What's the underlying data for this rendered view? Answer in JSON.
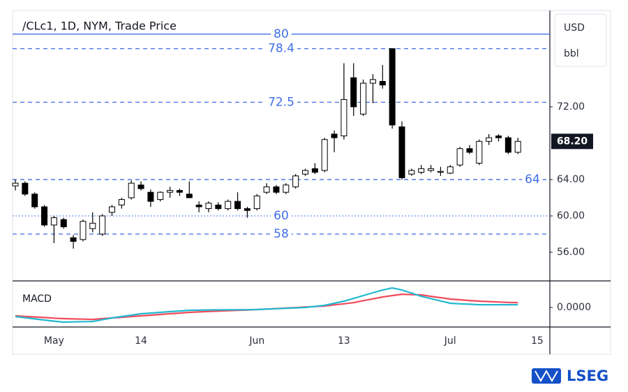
{
  "chart_data": [
    {
      "type": "candlestick",
      "title": "/CLc1, 1D, NYM, Trade Price",
      "currency": "USD",
      "unit": "bbl",
      "categories": [
        null,
        null,
        null,
        null,
        "May",
        null,
        null,
        null,
        null,
        null,
        null,
        null,
        null,
        "14",
        null,
        null,
        null,
        null,
        null,
        null,
        null,
        null,
        null,
        null,
        null,
        "Jun",
        null,
        null,
        null,
        null,
        null,
        null,
        null,
        null,
        "13",
        null,
        null,
        null,
        null,
        null,
        null,
        null,
        null,
        null,
        null,
        "Jul",
        null,
        null,
        null,
        null,
        null,
        null,
        null,
        null,
        "15"
      ],
      "open": [
        63.3,
        63.6,
        62.4,
        61.0,
        59.0,
        59.6,
        57.6,
        57.4,
        58.6,
        58.0,
        60.4,
        61.2,
        62.0,
        63.4,
        62.6,
        61.8,
        62.6,
        62.8,
        62.4,
        61.2,
        60.8,
        61.2,
        60.8,
        61.6,
        60.8,
        60.8,
        62.6,
        63.2,
        62.6,
        63.2,
        64.6,
        65.2,
        65.0,
        69.0,
        68.8,
        75.2,
        71.2,
        74.6,
        74.8,
        78.4,
        69.8,
        64.6,
        64.8,
        65.0,
        64.8,
        64.7,
        65.6,
        67.4,
        65.8,
        68.2,
        68.8,
        68.6,
        67.0,
        null,
        null
      ],
      "high": [
        64.0,
        63.8,
        62.6,
        61.2,
        60.0,
        59.8,
        57.9,
        59.6,
        60.4,
        60.2,
        61.2,
        62.0,
        63.9,
        63.8,
        62.9,
        62.7,
        63.2,
        63.0,
        63.8,
        61.6,
        61.6,
        61.5,
        61.8,
        62.6,
        61.0,
        62.4,
        63.6,
        63.4,
        63.6,
        64.6,
        65.2,
        65.8,
        68.6,
        69.4,
        76.8,
        76.8,
        75.0,
        75.6,
        76.6,
        78.4,
        70.4,
        65.2,
        65.6,
        65.6,
        65.4,
        65.6,
        67.6,
        67.8,
        68.4,
        69.0,
        69.0,
        68.8,
        68.6,
        null,
        null
      ],
      "low": [
        62.8,
        62.2,
        60.8,
        58.8,
        57.0,
        58.6,
        56.4,
        57.2,
        58.2,
        57.8,
        60.0,
        60.8,
        61.8,
        62.8,
        61.0,
        61.6,
        62.0,
        62.2,
        62.0,
        60.4,
        60.4,
        60.6,
        60.6,
        60.6,
        59.8,
        60.6,
        62.4,
        62.4,
        62.4,
        63.0,
        64.4,
        64.6,
        64.8,
        67.0,
        68.4,
        71.0,
        71.0,
        72.4,
        74.0,
        69.6,
        64.0,
        64.4,
        64.6,
        64.8,
        64.4,
        64.6,
        65.4,
        66.8,
        65.6,
        67.8,
        68.2,
        66.8,
        66.8,
        null,
        null
      ],
      "close": [
        63.6,
        62.4,
        61.0,
        59.0,
        59.8,
        58.8,
        57.2,
        59.4,
        59.2,
        60.0,
        61.0,
        61.8,
        63.6,
        63.0,
        61.6,
        62.6,
        62.8,
        62.6,
        62.0,
        61.0,
        61.4,
        60.8,
        61.6,
        60.8,
        60.6,
        62.2,
        63.2,
        62.6,
        63.4,
        64.4,
        65.0,
        64.8,
        68.4,
        68.6,
        72.8,
        72.0,
        74.6,
        75.0,
        74.4,
        70.0,
        64.2,
        65.0,
        65.2,
        65.2,
        64.9,
        65.4,
        67.4,
        67.0,
        68.2,
        68.6,
        68.6,
        67.0,
        68.2,
        null,
        null
      ],
      "up_color": "#ffffff",
      "down_color": "#000000",
      "edge_color": "#000000",
      "ylim": [
        52.85,
        82.6
      ],
      "yticks": [
        {
          "value": 56,
          "label": "56.00"
        },
        {
          "value": 60,
          "label": "60.00"
        },
        {
          "value": 64,
          "label": "64.00"
        },
        {
          "value": 72,
          "label": "72.00"
        }
      ],
      "levels": [
        {
          "value": 80,
          "style": "solid"
        },
        {
          "value": 78.4,
          "style": "dashed"
        },
        {
          "value": 72.5,
          "style": "dashed"
        },
        {
          "value": 64,
          "style": "dashed"
        },
        {
          "value": 60,
          "style": "dotted"
        },
        {
          "value": 58,
          "style": "dashed"
        }
      ],
      "level_color": "#3f6fe8",
      "last_price": {
        "value": 68.2,
        "label": "68.20"
      }
    },
    {
      "type": "line",
      "title": "MACD",
      "series": [
        {
          "name": "MACD",
          "color": "#22b8cf",
          "values": [
            -1.08,
            -1.22,
            -1.36,
            -1.5,
            -1.63,
            -1.75,
            -1.72,
            -1.69,
            -1.67,
            -1.46,
            -1.25,
            -1.08,
            -0.92,
            -0.75,
            -0.67,
            -0.58,
            -0.5,
            -0.42,
            -0.33,
            -0.32,
            -0.3,
            -0.29,
            -0.28,
            -0.27,
            -0.26,
            -0.25,
            -0.2,
            -0.15,
            -0.1,
            -0.05,
            0,
            0.13,
            0.25,
            0.5,
            0.75,
            1.08,
            1.42,
            1.75,
            2.08,
            2.33,
            2.08,
            1.71,
            1.33,
            1.06,
            0.78,
            0.5,
            0.44,
            0.39,
            0.33,
            0.33,
            0.33,
            0.33,
            0.33,
            null,
            null
          ]
        },
        {
          "name": "Signal",
          "color": "#ef4b5c",
          "values": [
            -1.0,
            -1.07,
            -1.13,
            -1.2,
            -1.27,
            -1.33,
            -1.36,
            -1.39,
            -1.42,
            -1.33,
            -1.25,
            -1.17,
            -1.08,
            -1.0,
            -0.92,
            -0.83,
            -0.75,
            -0.67,
            -0.58,
            -0.53,
            -0.48,
            -0.44,
            -0.39,
            -0.34,
            -0.3,
            -0.25,
            -0.19,
            -0.13,
            -0.07,
            -0.01,
            0.05,
            0.11,
            0.17,
            0.31,
            0.44,
            0.58,
            0.81,
            1.03,
            1.25,
            1.42,
            1.58,
            1.54,
            1.5,
            1.33,
            1.17,
            1.0,
            0.92,
            0.83,
            0.75,
            0.7,
            0.65,
            0.6,
            0.58,
            null,
            null
          ]
        }
      ],
      "ylim": [
        -2.33,
        3.17
      ],
      "yticks": [
        {
          "value": 0,
          "label": "0.0000"
        }
      ]
    }
  ],
  "brand": "LSEG"
}
